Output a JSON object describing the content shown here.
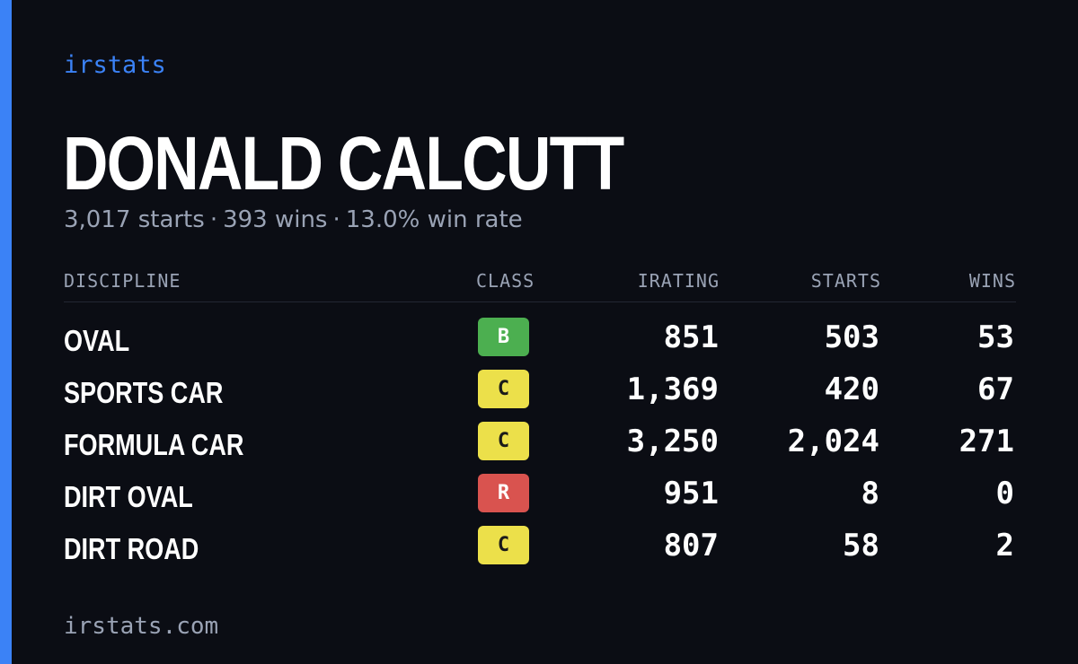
{
  "brand": "irstats",
  "driver": {
    "name": "DONALD CALCUTT",
    "starts_text": "3,017 starts",
    "wins_text": "393 wins",
    "win_rate_text": "13.0% win rate",
    "separator": "·"
  },
  "table": {
    "headers": {
      "discipline": "DISCIPLINE",
      "class": "CLASS",
      "irating": "IRATING",
      "starts": "STARTS",
      "wins": "WINS"
    },
    "rows": [
      {
        "discipline": "OVAL",
        "class": "B",
        "class_color": "#4caf50",
        "class_text_color": "#ffffff",
        "irating": "851",
        "starts": "503",
        "wins": "53"
      },
      {
        "discipline": "SPORTS CAR",
        "class": "C",
        "class_color": "#ece04a",
        "class_text_color": "#1a1a1a",
        "irating": "1,369",
        "starts": "420",
        "wins": "67"
      },
      {
        "discipline": "FORMULA CAR",
        "class": "C",
        "class_color": "#ece04a",
        "class_text_color": "#1a1a1a",
        "irating": "3,250",
        "starts": "2,024",
        "wins": "271"
      },
      {
        "discipline": "DIRT OVAL",
        "class": "R",
        "class_color": "#d9534f",
        "class_text_color": "#ffffff",
        "irating": "951",
        "starts": "8",
        "wins": "0"
      },
      {
        "discipline": "DIRT ROAD",
        "class": "C",
        "class_color": "#ece04a",
        "class_text_color": "#1a1a1a",
        "irating": "807",
        "starts": "58",
        "wins": "2"
      }
    ]
  },
  "footer": {
    "url": "irstats.com"
  },
  "colors": {
    "background": "#0b0d14",
    "accent": "#3b82f6",
    "muted_text": "#9aa3b5",
    "primary_text": "#ffffff"
  }
}
